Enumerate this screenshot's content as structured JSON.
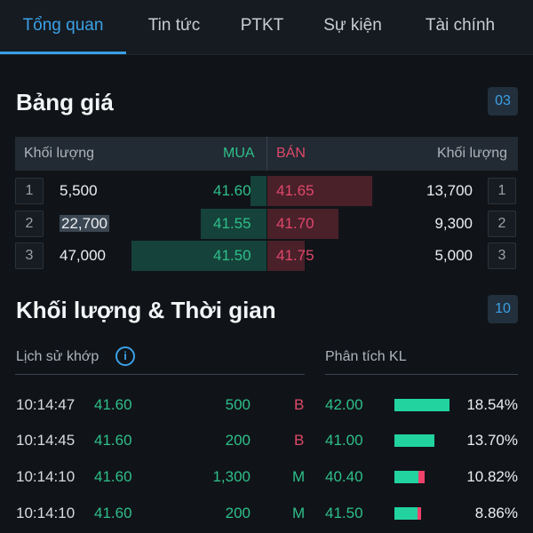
{
  "tabs": [
    {
      "label": "Tổng quan",
      "active": true
    },
    {
      "label": "Tin tức",
      "active": false
    },
    {
      "label": "PTKT",
      "active": false
    },
    {
      "label": "Sự kiện",
      "active": false
    },
    {
      "label": "Tài chính",
      "active": false
    }
  ],
  "price_board": {
    "title": "Bảng giá",
    "badge": "03",
    "header": {
      "buy_volume": "Khối lượng",
      "buy": "MUA",
      "sell": "BÁN",
      "sell_volume": "Khối lượng"
    },
    "rows": [
      {
        "num_left": "1",
        "buy_volume": "5,500",
        "buy_price": "41.60",
        "sell_price": "41.65",
        "sell_volume": "13,700",
        "num_right": "1"
      },
      {
        "num_left": "2",
        "buy_volume": "22,700",
        "buy_price": "41.55",
        "sell_price": "41.70",
        "sell_volume": "9,300",
        "num_right": "2"
      },
      {
        "num_left": "3",
        "buy_volume": "47,000",
        "buy_price": "41.50",
        "sell_price": "41.75",
        "sell_volume": "5,000",
        "num_right": "3"
      }
    ]
  },
  "volume_time": {
    "title": "Khối lượng & Thời gian",
    "badge": "10",
    "history_label": "Lịch sử khớp",
    "analysis_label": "Phân tích KL",
    "trades": [
      {
        "time": "10:14:47",
        "price": "41.60",
        "qty": "500",
        "side": "B"
      },
      {
        "time": "10:14:45",
        "price": "41.60",
        "qty": "200",
        "side": "B"
      },
      {
        "time": "10:14:10",
        "price": "41.60",
        "qty": "1,300",
        "side": "M"
      },
      {
        "time": "10:14:10",
        "price": "41.60",
        "qty": "200",
        "side": "M"
      }
    ],
    "analysis": [
      {
        "price": "42.00",
        "pct": "18.54%",
        "green_frac": 1.0,
        "red_frac": 0.0
      },
      {
        "price": "41.00",
        "pct": "13.70%",
        "green_frac": 0.72,
        "red_frac": 0.0
      },
      {
        "price": "40.40",
        "pct": "10.82%",
        "green_frac": 0.44,
        "red_frac": 0.12
      },
      {
        "price": "41.50",
        "pct": "8.86%",
        "green_frac": 0.42,
        "red_frac": 0.06
      }
    ]
  },
  "colors": {
    "accent": "#3ba0e6",
    "buy": "#2fbf8a",
    "sell": "#e0486a"
  }
}
